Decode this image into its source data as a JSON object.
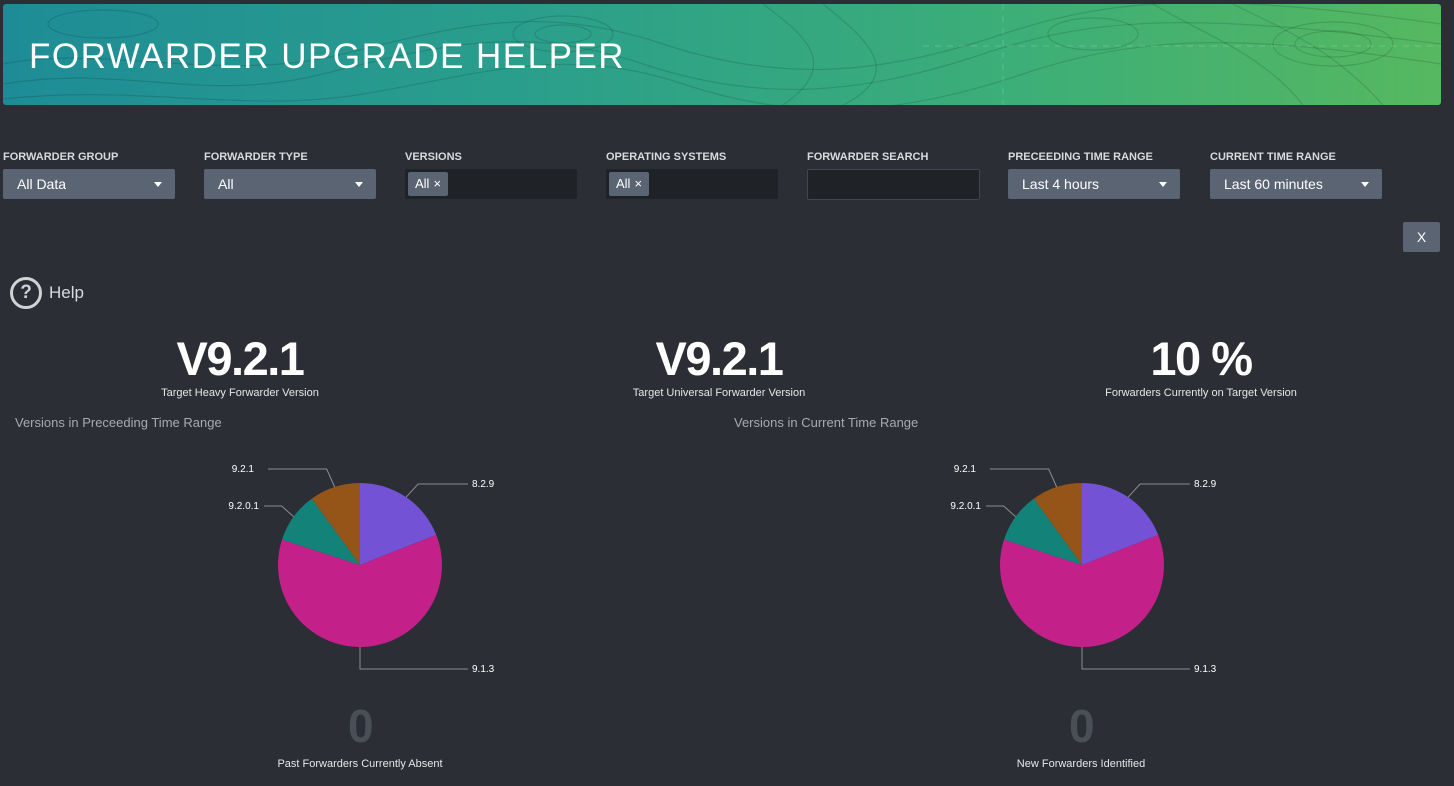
{
  "header": {
    "title": "FORWARDER UPGRADE HELPER"
  },
  "filters": {
    "forwarder_group": {
      "label": "FORWARDER GROUP",
      "value": "All Data"
    },
    "forwarder_type": {
      "label": "FORWARDER TYPE",
      "value": "All"
    },
    "versions": {
      "label": "VERSIONS",
      "chip": "All",
      "chip_remove": "×"
    },
    "operating_systems": {
      "label": "OPERATING SYSTEMS",
      "chip": "All",
      "chip_remove": "×"
    },
    "forwarder_search": {
      "label": "FORWARDER SEARCH",
      "value": ""
    },
    "preceding_time_range": {
      "label": "PRECEEDING TIME RANGE",
      "value": "Last 4 hours"
    },
    "current_time_range": {
      "label": "CURRENT TIME RANGE",
      "value": "Last 60 minutes"
    }
  },
  "close_button": {
    "label": "X"
  },
  "help": {
    "label": "Help",
    "icon": "question-circle-icon"
  },
  "stats": {
    "heavy": {
      "value": "V9.2.1",
      "label": "Target Heavy Forwarder Version"
    },
    "universal": {
      "value": "V9.2.1",
      "label": "Target Universal Forwarder Version"
    },
    "percent": {
      "value": "10 %",
      "label": "Forwarders Currently on Target Version"
    },
    "absent": {
      "value": "0",
      "label": "Past Forwarders Currently Absent"
    },
    "new": {
      "value": "0",
      "label": "New Forwarders Identified"
    }
  },
  "panels": {
    "preceding": {
      "title": "Versions in Preceeding Time Range"
    },
    "current": {
      "title": "Versions in Current Time Range"
    }
  },
  "chart_data": [
    {
      "type": "pie",
      "title": "Versions in Preceeding Time Range",
      "categories": [
        "8.2.9",
        "9.1.3",
        "9.2.0.1",
        "9.2.1"
      ],
      "values": [
        19.0,
        61.0,
        10.0,
        10.0
      ],
      "colors": [
        "#7452d6",
        "#c3208a",
        "#13837a",
        "#955418"
      ]
    },
    {
      "type": "pie",
      "title": "Versions in Current Time Range",
      "categories": [
        "8.2.9",
        "9.1.3",
        "9.2.0.1",
        "9.2.1"
      ],
      "values": [
        19.0,
        61.0,
        10.0,
        10.0
      ],
      "colors": [
        "#7452d6",
        "#c3208a",
        "#13837a",
        "#955418"
      ]
    }
  ]
}
